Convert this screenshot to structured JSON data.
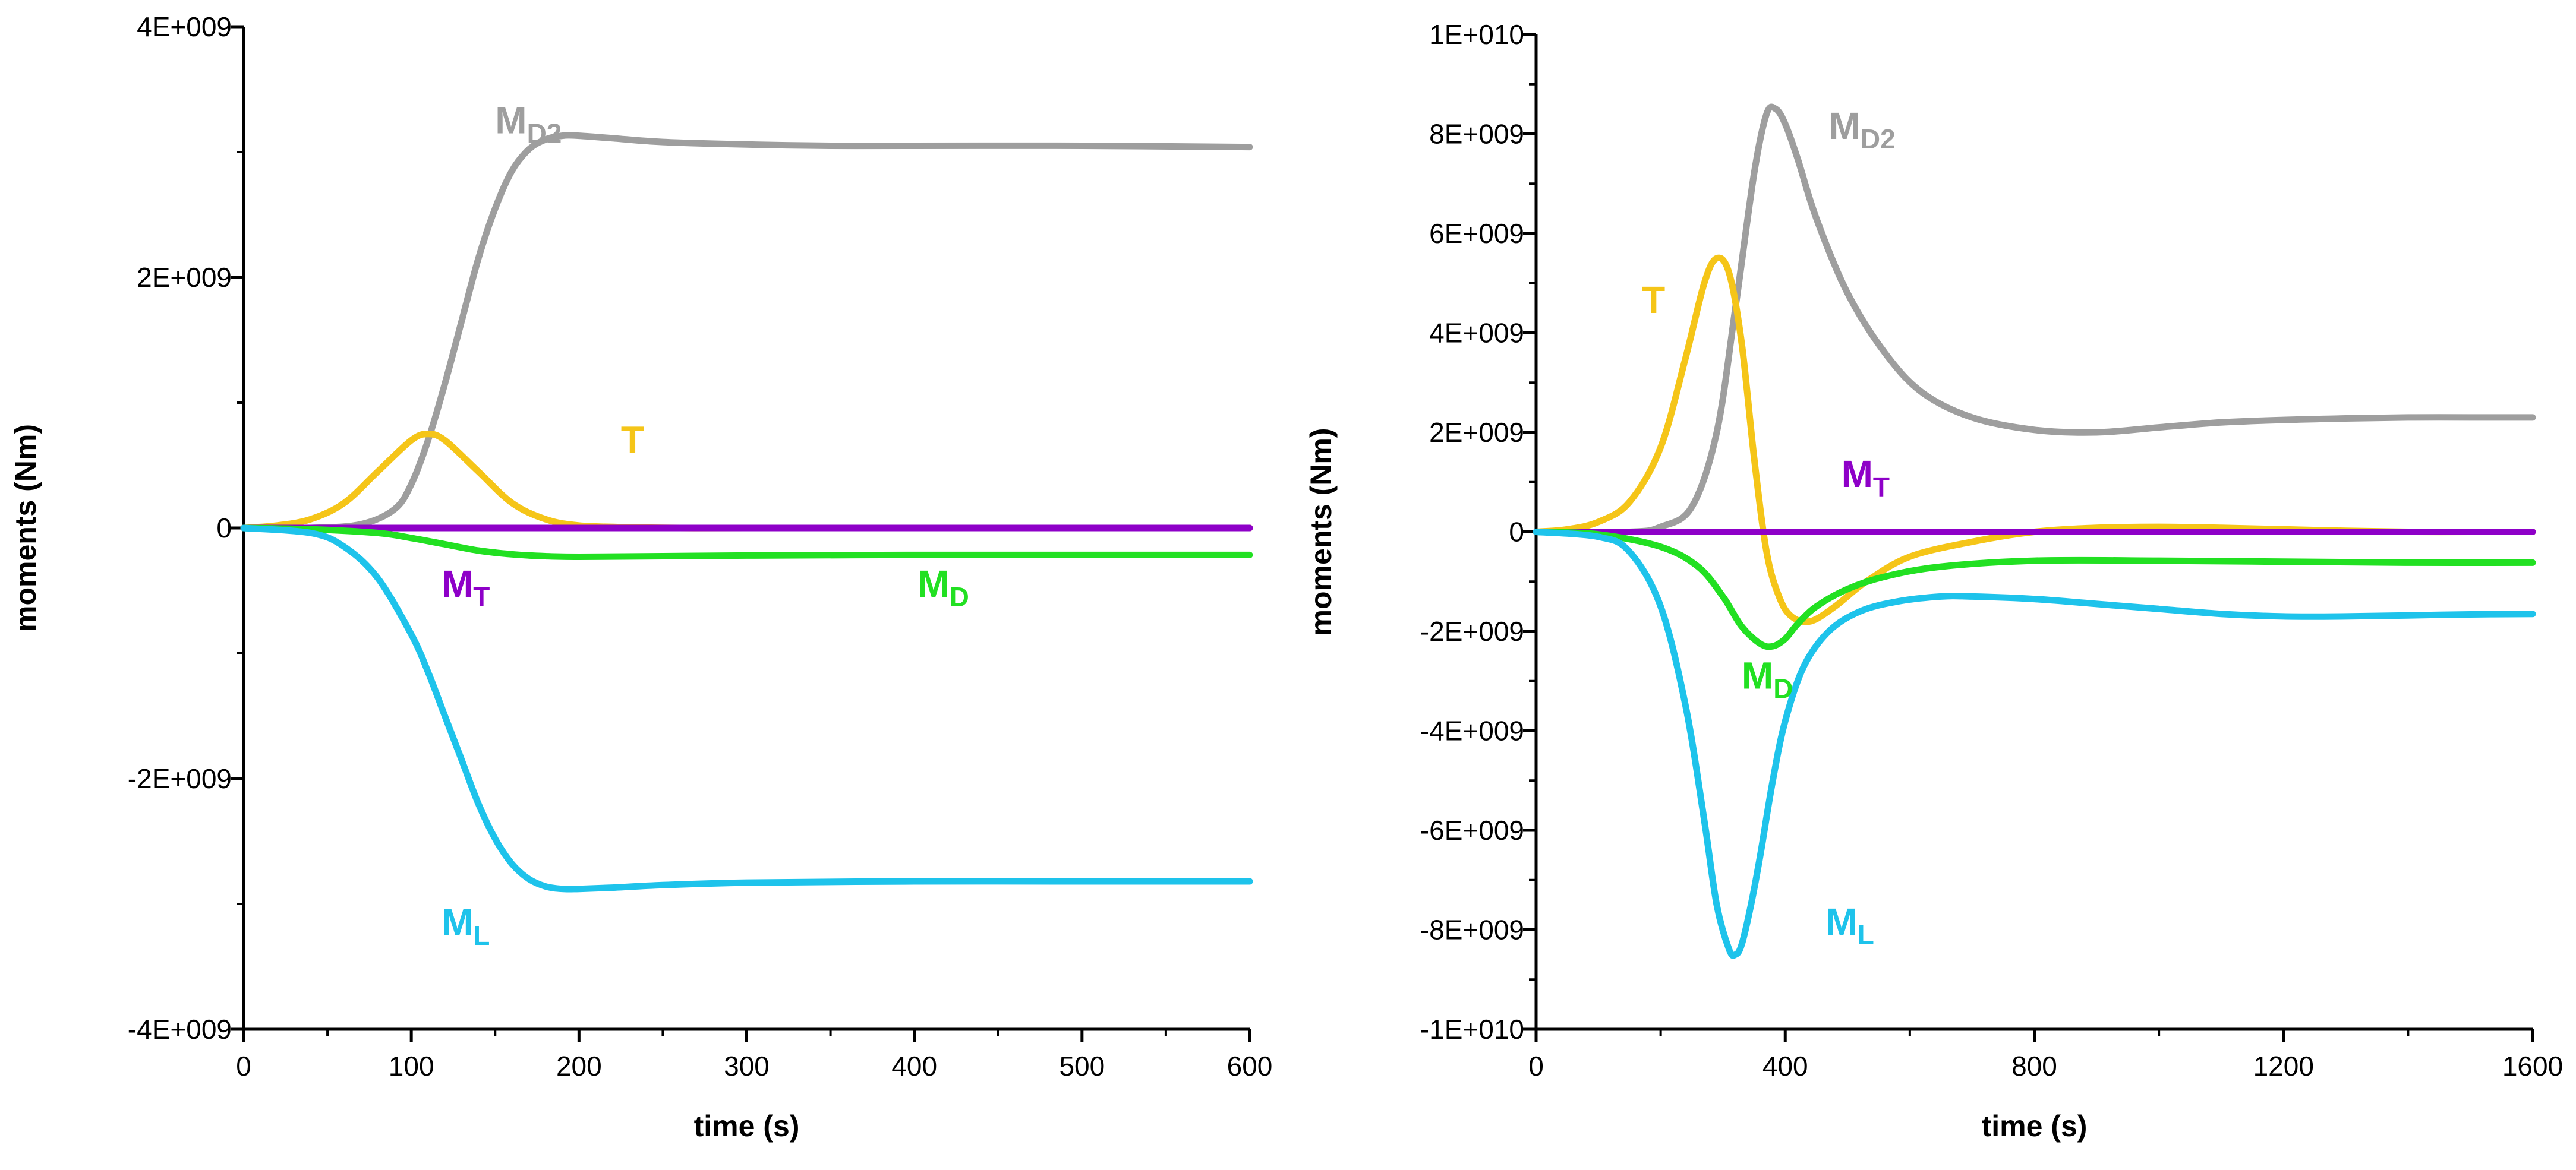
{
  "chart_data": [
    {
      "type": "line",
      "xlabel": "time (s)",
      "ylabel": "moments (Nm)",
      "xlim": [
        0,
        600
      ],
      "ylim": [
        -4000000000,
        4000000000
      ],
      "xticks": [
        0,
        100,
        200,
        300,
        400,
        500,
        600
      ],
      "xtick_labels": [
        "0",
        "100",
        "200",
        "300",
        "400",
        "500",
        "600"
      ],
      "yticks": [
        -4000000000,
        -2000000000,
        0,
        2000000000,
        4000000000
      ],
      "ytick_labels": [
        "-4E+009",
        "-2E+009",
        "0",
        "2E+009",
        "4E+009"
      ],
      "series": [
        {
          "name": "M_D2",
          "label_main": "M",
          "label_sub": "D2",
          "color": "#9e9e9e",
          "x": [
            0,
            40,
            70,
            90,
            100,
            110,
            120,
            130,
            140,
            150,
            160,
            170,
            180,
            190,
            200,
            220,
            250,
            300,
            350,
            400,
            500,
            600
          ],
          "y": [
            0,
            0,
            30000000,
            150000000,
            350000000,
            700000000,
            1150000000,
            1650000000,
            2150000000,
            2550000000,
            2850000000,
            3020000000,
            3100000000,
            3130000000,
            3130000000,
            3110000000,
            3080000000,
            3060000000,
            3050000000,
            3050000000,
            3050000000,
            3040000000
          ],
          "label_at": [
            150,
            3150000000
          ]
        },
        {
          "name": "T",
          "label_main": "T",
          "label_sub": "",
          "color": "#f5c518",
          "x": [
            0,
            20,
            40,
            60,
            80,
            100,
            110,
            120,
            140,
            160,
            180,
            200,
            230,
            260,
            300,
            400,
            500,
            600
          ],
          "y": [
            0,
            20000000,
            70000000,
            200000000,
            450000000,
            700000000,
            750000000,
            700000000,
            450000000,
            200000000,
            70000000,
            20000000,
            5000000,
            0,
            0,
            0,
            0,
            0
          ],
          "label_at": [
            225,
            600000000
          ]
        },
        {
          "name": "M_T",
          "label_main": "M",
          "label_sub": "T",
          "color": "#8e00c8",
          "x": [
            0,
            100,
            200,
            300,
            400,
            500,
            600
          ],
          "y": [
            0,
            0,
            0,
            0,
            0,
            0,
            0
          ],
          "label_at": [
            118,
            -550000000
          ]
        },
        {
          "name": "M_D",
          "label_main": "M",
          "label_sub": "D",
          "color": "#22e022",
          "x": [
            0,
            40,
            80,
            100,
            120,
            140,
            160,
            180,
            200,
            250,
            300,
            400,
            500,
            600
          ],
          "y": [
            0,
            -10000000,
            -40000000,
            -80000000,
            -130000000,
            -180000000,
            -210000000,
            -225000000,
            -230000000,
            -225000000,
            -220000000,
            -215000000,
            -215000000,
            -215000000
          ],
          "label_at": [
            402,
            -550000000
          ]
        },
        {
          "name": "M_L",
          "label_main": "M",
          "label_sub": "L",
          "color": "#1ec3eb",
          "x": [
            0,
            40,
            60,
            80,
            100,
            110,
            120,
            130,
            140,
            150,
            160,
            170,
            180,
            190,
            200,
            220,
            250,
            300,
            400,
            500,
            600
          ],
          "y": [
            0,
            -40000000,
            -150000000,
            -400000000,
            -850000000,
            -1150000000,
            -1500000000,
            -1850000000,
            -2200000000,
            -2480000000,
            -2680000000,
            -2800000000,
            -2860000000,
            -2880000000,
            -2880000000,
            -2870000000,
            -2850000000,
            -2830000000,
            -2820000000,
            -2820000000,
            -2820000000
          ],
          "label_at": [
            118,
            -3250000000
          ]
        }
      ]
    },
    {
      "type": "line",
      "xlabel": "time (s)",
      "ylabel": "moments (Nm)",
      "xlim": [
        0,
        1600
      ],
      "ylim": [
        -10000000000,
        10000000000
      ],
      "xticks": [
        0,
        400,
        800,
        1200,
        1600
      ],
      "xtick_labels": [
        "0",
        "400",
        "800",
        "1200",
        "1600"
      ],
      "yticks": [
        -10000000000,
        -8000000000,
        -6000000000,
        -4000000000,
        -2000000000,
        0,
        2000000000,
        4000000000,
        6000000000,
        8000000000,
        10000000000
      ],
      "ytick_labels": [
        "-1E+010",
        "-8E+009",
        "-6E+009",
        "-4E+009",
        "-2E+009",
        "0",
        "2E+009",
        "4E+009",
        "6E+009",
        "8E+009",
        "1E+010"
      ],
      "series": [
        {
          "name": "M_D2",
          "label_main": "M",
          "label_sub": "D2",
          "color": "#9e9e9e",
          "x": [
            0,
            150,
            200,
            250,
            290,
            320,
            350,
            370,
            385,
            400,
            420,
            450,
            500,
            560,
            620,
            700,
            800,
            900,
            1000,
            1100,
            1200,
            1300,
            1400,
            1500,
            1600
          ],
          "y": [
            0,
            0,
            100000000,
            500000000,
            2000000000,
            4500000000,
            7200000000,
            8400000000,
            8500000000,
            8200000000,
            7500000000,
            6300000000,
            4800000000,
            3600000000,
            2800000000,
            2300000000,
            2050000000,
            2000000000,
            2100000000,
            2200000000,
            2250000000,
            2280000000,
            2300000000,
            2300000000,
            2300000000
          ],
          "label_at": [
            470,
            7900000000
          ]
        },
        {
          "name": "T",
          "label_main": "T",
          "label_sub": "",
          "color": "#f5c518",
          "x": [
            0,
            50,
            100,
            150,
            200,
            240,
            270,
            290,
            310,
            330,
            350,
            370,
            390,
            410,
            440,
            480,
            530,
            600,
            700,
            800,
            900,
            1000,
            1100,
            1200,
            1300,
            1400,
            1500,
            1600
          ],
          "y": [
            0,
            50000000,
            200000000,
            600000000,
            1700000000,
            3500000000,
            5000000000,
            5500000000,
            5200000000,
            3800000000,
            1500000000,
            -400000000,
            -1300000000,
            -1700000000,
            -1800000000,
            -1500000000,
            -1000000000,
            -500000000,
            -200000000,
            0,
            80000000,
            100000000,
            80000000,
            50000000,
            20000000,
            0,
            0,
            0
          ],
          "label_at": [
            170,
            4400000000
          ]
        },
        {
          "name": "M_T",
          "label_main": "M",
          "label_sub": "T",
          "color": "#8e00c8",
          "x": [
            0,
            400,
            800,
            1200,
            1600
          ],
          "y": [
            0,
            0,
            0,
            0,
            0
          ],
          "label_at": [
            490,
            900000000
          ]
        },
        {
          "name": "M_D",
          "label_main": "M",
          "label_sub": "D",
          "color": "#22e022",
          "x": [
            0,
            100,
            200,
            260,
            300,
            330,
            360,
            380,
            400,
            420,
            450,
            500,
            560,
            650,
            800,
            1000,
            1200,
            1400,
            1600
          ],
          "y": [
            0,
            -50000000,
            -300000000,
            -700000000,
            -1300000000,
            -1900000000,
            -2250000000,
            -2300000000,
            -2150000000,
            -1850000000,
            -1500000000,
            -1150000000,
            -900000000,
            -700000000,
            -580000000,
            -580000000,
            -600000000,
            -620000000,
            -620000000
          ],
          "label_at": [
            330,
            -3150000000
          ]
        },
        {
          "name": "M_L",
          "label_main": "M",
          "label_sub": "L",
          "color": "#1ec3eb",
          "x": [
            0,
            100,
            150,
            200,
            240,
            270,
            290,
            310,
            320,
            330,
            345,
            360,
            380,
            400,
            430,
            470,
            520,
            580,
            650,
            700,
            800,
            900,
            1000,
            1100,
            1200,
            1300,
            1400,
            1500,
            1600
          ],
          "y": [
            0,
            -100000000,
            -400000000,
            -1500000000,
            -3500000000,
            -5800000000,
            -7500000000,
            -8400000000,
            -8500000000,
            -8300000000,
            -7500000000,
            -6500000000,
            -5000000000,
            -3800000000,
            -2700000000,
            -2000000000,
            -1600000000,
            -1400000000,
            -1300000000,
            -1300000000,
            -1350000000,
            -1450000000,
            -1550000000,
            -1650000000,
            -1700000000,
            -1700000000,
            -1680000000,
            -1660000000,
            -1650000000
          ],
          "label_at": [
            465,
            -8100000000
          ]
        }
      ]
    }
  ]
}
